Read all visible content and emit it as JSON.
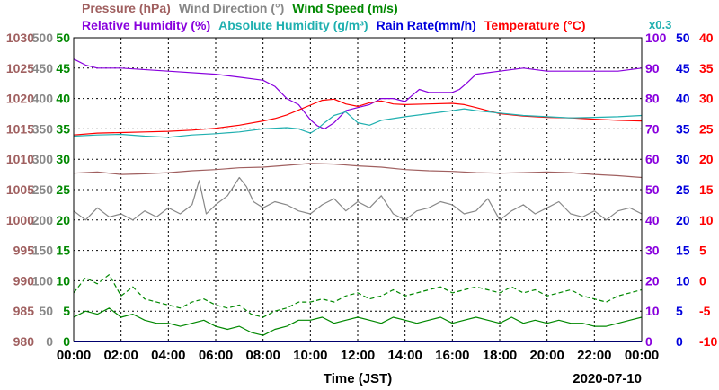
{
  "chart_data": {
    "type": "line",
    "date": "2020-07-10",
    "xlabel": "Time (JST)",
    "x_ticks": [
      "00:00",
      "02:00",
      "04:00",
      "06:00",
      "08:00",
      "10:00",
      "12:00",
      "14:00",
      "16:00",
      "18:00",
      "20:00",
      "22:00",
      "00:00"
    ],
    "x_range_hours": [
      0,
      24
    ],
    "grid": true,
    "legend": {
      "row1": [
        {
          "label": "Pressure (hPa)",
          "color": "#a06060"
        },
        {
          "label": "Wind Direction (°)",
          "color": "#888888"
        },
        {
          "label": "Wind Speed (m/s)",
          "color": "#008800"
        }
      ],
      "row2": [
        {
          "label": "Relative Humidity (%)",
          "color": "#8800dd"
        },
        {
          "label": "Absolute Humidity (g/m³)",
          "color": "#20b0b0"
        },
        {
          "label": "Rain Rate(mm/h)",
          "color": "#0000dd"
        },
        {
          "label": "Temperature (°C)",
          "color": "#ff0000"
        }
      ],
      "note": "x0.3",
      "note_color": "#20b0b0"
    },
    "axes": {
      "pressure": {
        "unit": "hPa",
        "range": [
          980,
          1030
        ],
        "ticks": [
          1030,
          1025,
          1020,
          1015,
          1010,
          1005,
          1000,
          995,
          990,
          985,
          980
        ],
        "color": "#a06060"
      },
      "wind_direction": {
        "unit": "°",
        "range": [
          0,
          500
        ],
        "ticks": [
          500,
          450,
          400,
          350,
          300,
          250,
          200,
          150,
          100,
          50,
          0
        ],
        "color": "#888888"
      },
      "wind_speed": {
        "unit": "m/s",
        "range": [
          0,
          50
        ],
        "ticks": [
          50,
          45,
          40,
          35,
          30,
          25,
          20,
          15,
          10,
          5,
          0
        ],
        "color": "#008800"
      },
      "humidity": {
        "unit": "%",
        "range": [
          0,
          100
        ],
        "ticks": [
          100,
          90,
          80,
          70,
          60,
          50,
          40,
          30,
          20,
          10,
          0
        ],
        "color": "#8800dd"
      },
      "rain_rate": {
        "unit": "mm/h",
        "range": [
          0,
          50
        ],
        "ticks": [
          50,
          45,
          40,
          35,
          30,
          25,
          20,
          15,
          10,
          5,
          0
        ],
        "color": "#0000dd"
      },
      "temperature": {
        "unit": "°C",
        "range": [
          -10,
          40
        ],
        "ticks": [
          40,
          35,
          30,
          25,
          20,
          15,
          10,
          5,
          0,
          -5,
          -10
        ],
        "color": "#ff0000"
      }
    },
    "series": [
      {
        "name": "Relative Humidity (%)",
        "axis": "humidity",
        "color": "#8800dd",
        "style": "solid",
        "x": [
          0,
          0.5,
          1,
          1.5,
          2,
          4,
          6,
          7,
          8,
          8.5,
          9,
          9.5,
          10,
          10.3,
          10.6,
          11,
          11.5,
          12,
          12.5,
          13,
          13.5,
          14,
          14.3,
          14.6,
          15,
          16,
          16.3,
          16.6,
          17,
          18,
          19,
          20,
          21,
          22,
          23,
          24
        ],
        "y": [
          93,
          91,
          90,
          90,
          90,
          89,
          88,
          87,
          86,
          84,
          80,
          78,
          73,
          71,
          70,
          72,
          76,
          77,
          78,
          80,
          80,
          79,
          81,
          83,
          82,
          82,
          83,
          85,
          88,
          89,
          90,
          89,
          89,
          89,
          89,
          90
        ]
      },
      {
        "name": "Temperature (°C)",
        "axis": "temperature",
        "color": "#ff0000",
        "style": "solid",
        "x": [
          0,
          1,
          2,
          3,
          4,
          5,
          6,
          7,
          8,
          8.5,
          9,
          9.5,
          10,
          10.5,
          11,
          11.5,
          12,
          12.5,
          13,
          13.5,
          14,
          15,
          16,
          16.5,
          17,
          17.5,
          18,
          19,
          20,
          21,
          22,
          23,
          24
        ],
        "y": [
          24.0,
          24.3,
          24.4,
          24.5,
          24.6,
          24.8,
          25.1,
          25.6,
          26.3,
          26.7,
          27.3,
          28.1,
          28.9,
          29.7,
          29.9,
          29.1,
          28.7,
          29.3,
          29.6,
          29.1,
          29.0,
          29.1,
          29.2,
          29.0,
          28.5,
          28.0,
          27.5,
          27.1,
          26.9,
          26.8,
          26.6,
          26.4,
          26.3
        ]
      },
      {
        "name": "Absolute Humidity (g/m³)",
        "axis": "temperature",
        "color": "#20b0b0",
        "style": "solid",
        "x": [
          0,
          1,
          2,
          3,
          4,
          5,
          6,
          7,
          8,
          9,
          9.5,
          10,
          10.3,
          10.6,
          11,
          11.5,
          12,
          12.5,
          13,
          14,
          15,
          16,
          16.5,
          17,
          18,
          19,
          20,
          21,
          22,
          23,
          24
        ],
        "y": [
          23.8,
          24.0,
          24.1,
          23.8,
          23.6,
          24.0,
          24.2,
          24.5,
          25.0,
          25.2,
          25.0,
          24.3,
          25.0,
          26.0,
          27.2,
          27.8,
          26.0,
          25.6,
          26.4,
          27.0,
          27.5,
          28.0,
          28.3,
          28.0,
          27.6,
          27.2,
          27.0,
          26.8,
          26.9,
          27.0,
          27.2
        ]
      },
      {
        "name": "Pressure (hPa)",
        "axis": "pressure",
        "color": "#a06060",
        "style": "solid",
        "x": [
          0,
          1,
          2,
          3,
          4,
          5,
          6,
          7,
          8,
          9,
          10,
          11,
          12,
          13,
          14,
          15,
          16,
          17,
          18,
          19,
          20,
          21,
          22,
          23,
          24
        ],
        "y": [
          1007.7,
          1007.9,
          1007.5,
          1007.6,
          1007.8,
          1008.1,
          1008.3,
          1008.6,
          1008.7,
          1009.0,
          1009.3,
          1009.2,
          1008.9,
          1008.7,
          1008.3,
          1008.1,
          1008.0,
          1007.8,
          1007.7,
          1007.8,
          1007.9,
          1007.8,
          1007.5,
          1007.3,
          1007.0
        ]
      },
      {
        "name": "Wind Direction (°)",
        "axis": "wind_direction",
        "color": "#888888",
        "style": "solid",
        "x": [
          0,
          0.5,
          1,
          1.5,
          2,
          2.5,
          3,
          3.5,
          4,
          4.5,
          5,
          5.3,
          5.6,
          6,
          6.5,
          7,
          7.3,
          7.6,
          8,
          8.5,
          9,
          9.5,
          10,
          10.5,
          11,
          11.5,
          12,
          12.5,
          13,
          13.5,
          14,
          14.5,
          15,
          15.5,
          16,
          16.5,
          17,
          17.5,
          18,
          18.5,
          19,
          19.5,
          20,
          20.5,
          21,
          21.5,
          22,
          22.5,
          23,
          23.5,
          24
        ],
        "y": [
          215,
          200,
          220,
          205,
          210,
          200,
          215,
          205,
          220,
          210,
          225,
          265,
          210,
          225,
          240,
          270,
          255,
          230,
          220,
          230,
          225,
          215,
          210,
          225,
          235,
          215,
          230,
          220,
          240,
          210,
          200,
          215,
          220,
          230,
          225,
          210,
          215,
          235,
          200,
          215,
          225,
          210,
          220,
          230,
          210,
          205,
          215,
          200,
          215,
          220,
          210
        ]
      },
      {
        "name": "Wind Speed (m/s)",
        "axis": "wind_speed",
        "color": "#008800",
        "style": "dashed",
        "x": [
          0,
          0.5,
          1,
          1.5,
          2,
          2.5,
          3,
          3.5,
          4,
          4.5,
          5,
          5.5,
          6,
          6.5,
          7,
          7.5,
          8,
          8.5,
          9,
          9.5,
          10,
          10.5,
          11,
          11.5,
          12,
          12.5,
          13,
          13.5,
          14,
          14.5,
          15,
          15.5,
          16,
          16.5,
          17,
          17.5,
          18,
          18.5,
          19,
          19.5,
          20,
          20.5,
          21,
          21.5,
          22,
          22.5,
          23,
          23.5,
          24
        ],
        "y": [
          8.0,
          10.5,
          9.5,
          11.0,
          7.5,
          9.0,
          7.0,
          6.5,
          6.0,
          5.5,
          6.5,
          7.0,
          6.0,
          5.5,
          6.0,
          4.5,
          4.0,
          5.0,
          5.5,
          6.5,
          6.5,
          7.0,
          6.5,
          7.5,
          8.0,
          7.0,
          7.5,
          8.5,
          7.5,
          8.0,
          8.5,
          9.0,
          8.0,
          8.5,
          9.0,
          8.5,
          8.0,
          9.0,
          8.0,
          8.5,
          7.5,
          8.0,
          8.5,
          7.5,
          7.0,
          6.5,
          7.5,
          8.0,
          8.5
        ]
      },
      {
        "name": "Wind Speed (m/s)",
        "axis": "wind_speed",
        "color": "#008800",
        "style": "solid",
        "x": [
          0,
          0.5,
          1,
          1.5,
          2,
          2.5,
          3,
          3.5,
          4,
          4.5,
          5,
          5.5,
          6,
          6.5,
          7,
          7.5,
          8,
          8.5,
          9,
          9.5,
          10,
          10.5,
          11,
          11.5,
          12,
          12.5,
          13,
          13.5,
          14,
          14.5,
          15,
          15.5,
          16,
          16.5,
          17,
          17.5,
          18,
          18.5,
          19,
          19.5,
          20,
          20.5,
          21,
          21.5,
          22,
          22.5,
          23,
          23.5,
          24
        ],
        "y": [
          4.0,
          5.0,
          4.5,
          5.5,
          4.0,
          4.5,
          3.5,
          3.0,
          3.0,
          2.5,
          3.0,
          3.5,
          2.5,
          2.0,
          2.5,
          1.5,
          1.0,
          2.0,
          2.5,
          3.5,
          3.5,
          4.0,
          3.0,
          3.5,
          4.0,
          3.5,
          3.0,
          4.0,
          3.5,
          3.0,
          3.5,
          4.0,
          3.0,
          3.5,
          4.0,
          3.5,
          3.0,
          4.0,
          3.0,
          3.5,
          3.0,
          3.5,
          3.0,
          3.0,
          2.5,
          2.5,
          3.0,
          3.5,
          4.0
        ]
      },
      {
        "name": "Rain Rate(mm/h)",
        "axis": "rain_rate",
        "color": "#0000dd",
        "style": "solid",
        "x": [
          0,
          24
        ],
        "y": [
          0,
          0
        ]
      }
    ]
  }
}
